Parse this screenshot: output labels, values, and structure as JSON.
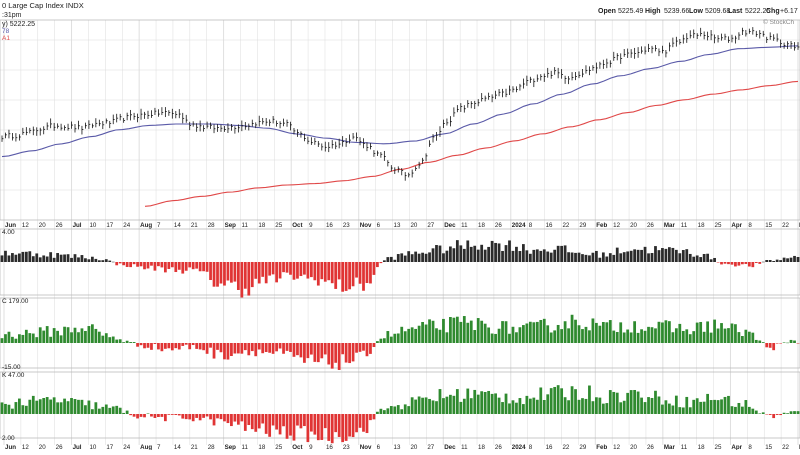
{
  "header": {
    "title": "0 Large Cap Index INDX",
    "time": ":31pm",
    "legend_ohlc": "y) 5222.25",
    "legend_ma50": "78",
    "legend_ma200": "A1",
    "quote": {
      "open_label": "Open",
      "open": "5225.49",
      "high_label": "High",
      "high": "5239.66",
      "low_label": "Low",
      "low": "5209.68",
      "last_label": "Last",
      "last": "5222.25",
      "chg_label": "Chg",
      "chg": "+6.17"
    },
    "watermark": "© StockCh"
  },
  "month_axis": [
    {
      "label": "Jun",
      "month": true
    },
    {
      "label": "12"
    },
    {
      "label": "20"
    },
    {
      "label": "26"
    },
    {
      "label": "Jul",
      "month": true
    },
    {
      "label": "10"
    },
    {
      "label": "17"
    },
    {
      "label": "24"
    },
    {
      "label": "Aug",
      "month": true
    },
    {
      "label": "7"
    },
    {
      "label": "14"
    },
    {
      "label": "21"
    },
    {
      "label": "28"
    },
    {
      "label": "Sep",
      "month": true
    },
    {
      "label": "11"
    },
    {
      "label": "18"
    },
    {
      "label": "25"
    },
    {
      "label": "Oct",
      "month": true
    },
    {
      "label": "9"
    },
    {
      "label": "16"
    },
    {
      "label": "23"
    },
    {
      "label": "Nov",
      "month": true
    },
    {
      "label": "6"
    },
    {
      "label": "13"
    },
    {
      "label": "20"
    },
    {
      "label": "27"
    },
    {
      "label": "Dec",
      "month": true
    },
    {
      "label": "11"
    },
    {
      "label": "18"
    },
    {
      "label": "26"
    },
    {
      "label": "2024",
      "month": true
    },
    {
      "label": "8"
    },
    {
      "label": "16"
    },
    {
      "label": "22"
    },
    {
      "label": "29"
    },
    {
      "label": "Feb",
      "month": true
    },
    {
      "label": "12"
    },
    {
      "label": "20"
    },
    {
      "label": "26"
    },
    {
      "label": "Mar",
      "month": true
    },
    {
      "label": "11"
    },
    {
      "label": "18"
    },
    {
      "label": "25"
    },
    {
      "label": "Apr",
      "month": true
    },
    {
      "label": "8"
    },
    {
      "label": "15"
    },
    {
      "label": "22"
    },
    {
      "label": "Ma",
      "month": true
    }
  ],
  "panel_labels": {
    "p1_top": "4.00",
    "p2_top": "C 179.00",
    "p2_bottom": "-15.00",
    "p3_top": "K 47.00",
    "p3_bottom": "2.00"
  },
  "colors": {
    "price": "#111111",
    "ma50": "#5a5aa8",
    "ma200": "#e04848",
    "bar_up_dark": "#2b2b2b",
    "bar_down": "#e03434",
    "bar_up_green": "#2f8a2f",
    "grid": "#dcdcdc"
  },
  "chart_data": [
    {
      "type": "line",
      "name": "price",
      "anchors": [
        5.3,
        5.4,
        5.6,
        5.9,
        6.1,
        6.0,
        5.9,
        6.2,
        6.3,
        6.6,
        6.8,
        6.9,
        7.0,
        6.9,
        6.2,
        6.0,
        5.9,
        6.0,
        6.1,
        6.3,
        6.4,
        6.2,
        5.5,
        4.9,
        4.6,
        4.8,
        5.3,
        4.7,
        4.0,
        3.1,
        2.6,
        3.4,
        5.2,
        6.4,
        7.3,
        7.7,
        8.0,
        8.3,
        8.6,
        9.2,
        9.6,
        9.8,
        9.5,
        9.8,
        10.2,
        10.6,
        11.0,
        11.2,
        11.5,
        11.3,
        11.9,
        12.4,
        12.5,
        12.2,
        12.2,
        12.7,
        12.6,
        12.2,
        11.9,
        11.5
      ],
      "ma50": [
        3.9,
        4.3,
        4.8,
        5.3,
        5.8,
        6.1,
        6.2,
        6.2,
        6.1,
        5.9,
        5.5,
        5.2,
        4.9,
        4.8,
        5.0,
        5.5,
        6.2,
        6.9,
        7.6,
        8.3,
        9.0,
        9.6,
        10.1,
        10.6,
        11.1,
        11.5,
        11.6,
        11.7
      ],
      "ma200": [
        0.4,
        0.8,
        1.1,
        1.4,
        1.7,
        1.9,
        2.0,
        2.2,
        2.5,
        3.0,
        3.5,
        4.0,
        4.5,
        5.0,
        5.5,
        6.0,
        6.5,
        7.0,
        7.5,
        7.9,
        8.3,
        8.6,
        8.9,
        9.2
      ]
    },
    {
      "type": "bar",
      "name": "indicator-1",
      "anchors": [
        1.0,
        0.9,
        0.8,
        0.6,
        0.4,
        -0.3,
        -0.6,
        -0.8,
        -0.9,
        -2.2,
        -2.8,
        -1.9,
        -1.5,
        -1.8,
        -2.6,
        -2.4,
        0.4,
        0.9,
        1.3,
        1.7,
        1.9,
        1.8,
        1.3,
        1.4,
        0.9,
        0.8,
        1.4,
        1.3,
        1.2,
        0.8,
        -0.2,
        -0.4,
        0.2,
        0.6
      ]
    },
    {
      "type": "bar",
      "name": "indicator-2",
      "anchors": [
        0.4,
        0.5,
        0.6,
        0.8,
        0.3,
        -0.1,
        -0.3,
        -0.2,
        -0.6,
        -0.4,
        -0.5,
        -0.9,
        -1.0,
        -0.8,
        0.4,
        0.7,
        0.9,
        1.0,
        0.8,
        0.7,
        0.9,
        1.1,
        0.8,
        0.9,
        0.8,
        0.7,
        0.9,
        0.6,
        -0.2,
        0.1
      ]
    },
    {
      "type": "bar",
      "name": "indicator-3",
      "anchors": [
        0.5,
        0.6,
        0.7,
        0.5,
        0.3,
        -0.1,
        -0.2,
        -0.2,
        -0.4,
        -0.7,
        -0.9,
        -1.0,
        -1.1,
        -0.9,
        0.3,
        0.6,
        0.9,
        1.0,
        0.9,
        0.8,
        1.0,
        1.1,
        0.9,
        1.0,
        0.8,
        0.6,
        0.8,
        0.5,
        -0.1,
        0.1
      ]
    }
  ]
}
